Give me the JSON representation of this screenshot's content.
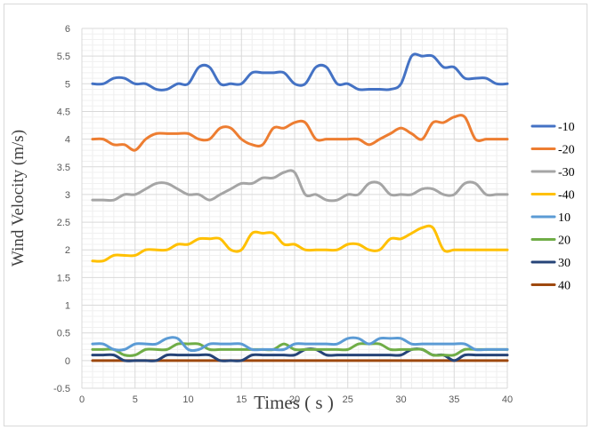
{
  "chart_data": {
    "type": "line",
    "title": "",
    "xlabel": "Times ( s )",
    "ylabel": "Wind Velocity (m/s)",
    "xlim": [
      0,
      40
    ],
    "ylim": [
      -0.5,
      6
    ],
    "x_ticks": [
      0,
      5,
      10,
      15,
      20,
      25,
      30,
      35,
      40
    ],
    "y_ticks": [
      -0.5,
      0,
      0.5,
      1,
      1.5,
      2,
      2.5,
      3,
      3.5,
      4,
      4.5,
      5,
      5.5,
      6
    ],
    "x_tick_labels": [
      "0",
      "5",
      "10",
      "15",
      "20",
      "25",
      "30",
      "35",
      "40"
    ],
    "y_tick_labels": [
      "-0.5",
      "0",
      "0.5",
      "1",
      "1.5",
      "2",
      "2.5",
      "3",
      "3.5",
      "4",
      "4.5",
      "5",
      "5.5",
      "6"
    ],
    "grid": true,
    "smooth": true,
    "legend_position": "right",
    "x": [
      1,
      2,
      3,
      4,
      5,
      6,
      7,
      8,
      9,
      10,
      11,
      12,
      13,
      14,
      15,
      16,
      17,
      18,
      19,
      20,
      21,
      22,
      23,
      24,
      25,
      26,
      27,
      28,
      29,
      30,
      31,
      32,
      33,
      34,
      35,
      36,
      37,
      38,
      39,
      40
    ],
    "series": [
      {
        "name": "-10",
        "color": "#4472C4",
        "values": [
          5.0,
          5.0,
          5.1,
          5.1,
          5.0,
          5.0,
          4.9,
          4.9,
          5.0,
          5.0,
          5.3,
          5.3,
          5.0,
          5.0,
          5.0,
          5.2,
          5.2,
          5.2,
          5.2,
          5.0,
          5.0,
          5.3,
          5.3,
          5.0,
          5.0,
          4.9,
          4.9,
          4.9,
          4.9,
          5.0,
          5.5,
          5.5,
          5.5,
          5.3,
          5.3,
          5.1,
          5.1,
          5.1,
          5.0,
          5.0
        ]
      },
      {
        "name": "-20",
        "color": "#ED7D31",
        "values": [
          4.0,
          4.0,
          3.9,
          3.9,
          3.8,
          4.0,
          4.1,
          4.1,
          4.1,
          4.1,
          4.0,
          4.0,
          4.2,
          4.2,
          4.0,
          3.9,
          3.9,
          4.2,
          4.2,
          4.3,
          4.3,
          4.0,
          4.0,
          4.0,
          4.0,
          4.0,
          3.9,
          4.0,
          4.1,
          4.2,
          4.1,
          4.0,
          4.3,
          4.3,
          4.4,
          4.4,
          4.0,
          4.0,
          4.0,
          4.0
        ]
      },
      {
        "name": "-30",
        "color": "#A5A5A5",
        "values": [
          2.9,
          2.9,
          2.9,
          3.0,
          3.0,
          3.1,
          3.2,
          3.2,
          3.1,
          3.0,
          3.0,
          2.9,
          3.0,
          3.1,
          3.2,
          3.2,
          3.3,
          3.3,
          3.4,
          3.4,
          3.0,
          3.0,
          2.9,
          2.9,
          3.0,
          3.0,
          3.2,
          3.2,
          3.0,
          3.0,
          3.0,
          3.1,
          3.1,
          3.0,
          3.0,
          3.2,
          3.2,
          3.0,
          3.0,
          3.0
        ]
      },
      {
        "name": "-40",
        "color": "#FFC000",
        "values": [
          1.8,
          1.8,
          1.9,
          1.9,
          1.9,
          2.0,
          2.0,
          2.0,
          2.1,
          2.1,
          2.2,
          2.2,
          2.2,
          2.0,
          2.0,
          2.3,
          2.3,
          2.3,
          2.1,
          2.1,
          2.0,
          2.0,
          2.0,
          2.0,
          2.1,
          2.1,
          2.0,
          2.0,
          2.2,
          2.2,
          2.3,
          2.4,
          2.4,
          2.0,
          2.0,
          2.0,
          2.0,
          2.0,
          2.0,
          2.0
        ]
      },
      {
        "name": "10",
        "color": "#5B9BD5",
        "values": [
          0.3,
          0.3,
          0.2,
          0.2,
          0.3,
          0.3,
          0.3,
          0.4,
          0.4,
          0.2,
          0.2,
          0.3,
          0.3,
          0.3,
          0.3,
          0.2,
          0.2,
          0.2,
          0.2,
          0.3,
          0.3,
          0.3,
          0.3,
          0.3,
          0.4,
          0.4,
          0.3,
          0.4,
          0.4,
          0.4,
          0.3,
          0.3,
          0.3,
          0.3,
          0.3,
          0.3,
          0.2,
          0.2,
          0.2,
          0.2
        ]
      },
      {
        "name": "20",
        "color": "#70AD47",
        "values": [
          0.2,
          0.2,
          0.2,
          0.1,
          0.1,
          0.2,
          0.2,
          0.2,
          0.3,
          0.3,
          0.3,
          0.2,
          0.2,
          0.2,
          0.2,
          0.2,
          0.2,
          0.2,
          0.3,
          0.2,
          0.2,
          0.2,
          0.2,
          0.2,
          0.2,
          0.3,
          0.3,
          0.3,
          0.2,
          0.2,
          0.2,
          0.2,
          0.1,
          0.1,
          0.1,
          0.2,
          0.2,
          0.2,
          0.2,
          0.2
        ]
      },
      {
        "name": "30",
        "color": "#264478",
        "values": [
          0.1,
          0.1,
          0.1,
          0.0,
          0.0,
          0.0,
          0.0,
          0.1,
          0.1,
          0.1,
          0.1,
          0.1,
          0.0,
          0.0,
          0.0,
          0.1,
          0.1,
          0.1,
          0.1,
          0.1,
          0.2,
          0.2,
          0.1,
          0.1,
          0.1,
          0.1,
          0.1,
          0.1,
          0.1,
          0.1,
          0.2,
          0.2,
          0.1,
          0.1,
          0.0,
          0.1,
          0.1,
          0.1,
          0.1,
          0.1
        ]
      },
      {
        "name": "40",
        "color": "#9E480E",
        "values": [
          0.0,
          0.0,
          0.0,
          0.0,
          0.0,
          0.0,
          0.0,
          0.0,
          0.0,
          0.0,
          0.0,
          0.0,
          0.0,
          0.0,
          0.0,
          0.0,
          0.0,
          0.0,
          0.0,
          0.0,
          0.0,
          0.0,
          0.0,
          0.0,
          0.0,
          0.0,
          0.0,
          0.0,
          0.0,
          0.0,
          0.0,
          0.0,
          0.0,
          0.0,
          0.0,
          0.0,
          0.0,
          0.0,
          0.0,
          0.0
        ]
      }
    ]
  }
}
